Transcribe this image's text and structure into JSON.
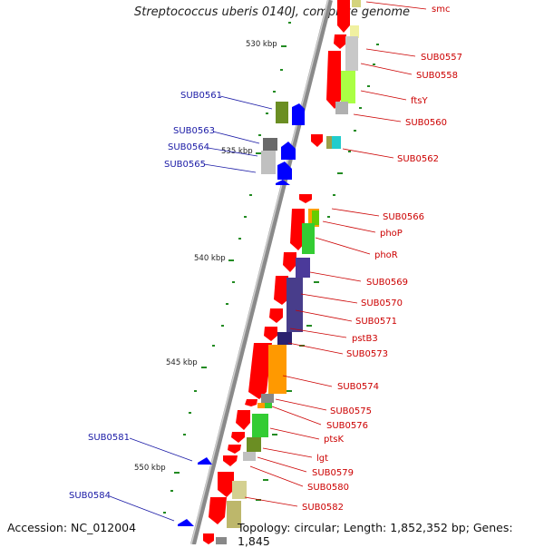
{
  "title": "Streptococcus uberis 0140J, complete genome",
  "accession": "Accession: NC_012004",
  "topology": "Topology: circular; Length: 1,852,352 bp; Genes: 1,845",
  "kbp_labels": [
    "530 kbp",
    "535 kbp",
    "540 kbp",
    "545 kbp",
    "550 kbp"
  ],
  "forward_labels": [
    "smc",
    "SUB0557",
    "SUB0558",
    "ftsY",
    "SUB0560",
    "SUB0562",
    "SUB0566",
    "phoP",
    "phoR",
    "SUB0569",
    "SUB0570",
    "SUB0571",
    "pstB3",
    "SUB0573",
    "SUB0574",
    "SUB0575",
    "SUB0576",
    "ptsK",
    "lgt",
    "SUB0579",
    "SUB0580",
    "SUB0582"
  ],
  "reverse_labels": [
    "SUB0561",
    "SUB0563",
    "SUB0564",
    "SUB0565",
    "SUB0581",
    "SUB0584"
  ],
  "colors": {
    "forward_gene": "#ff0000",
    "reverse_gene": "#0000ff",
    "forward_label": "#cc0000",
    "reverse_label": "#1a1aa6",
    "backbone": "#808080",
    "tick": "#228b22"
  }
}
